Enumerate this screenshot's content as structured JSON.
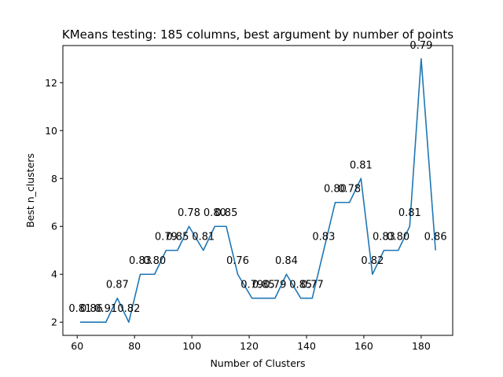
{
  "chart_data": {
    "type": "line",
    "title": "KMeans testing: 185 columns, best argument by number of points",
    "xlabel": "Number of Clusters",
    "ylabel": "Best n_clusters",
    "xlim": [
      55,
      191
    ],
    "ylim": [
      1.45,
      13.55
    ],
    "xticks": [
      60,
      80,
      100,
      120,
      140,
      160,
      180
    ],
    "yticks": [
      2,
      4,
      6,
      8,
      10,
      12
    ],
    "grid": false,
    "line_color": "#1f77b4",
    "series": [
      {
        "points": [
          {
            "x": 61,
            "y": 2,
            "label": "0.81"
          },
          {
            "x": 65,
            "y": 2,
            "label": "0.86"
          },
          {
            "x": 70,
            "y": 2,
            "label": "0.91"
          },
          {
            "x": 74,
            "y": 3,
            "label": "0.87"
          },
          {
            "x": 78,
            "y": 2,
            "label": "0.82"
          },
          {
            "x": 82,
            "y": 4,
            "label": "0.83"
          },
          {
            "x": 87,
            "y": 4,
            "label": "0.80"
          },
          {
            "x": 91,
            "y": 5,
            "label": "0.79"
          },
          {
            "x": 95,
            "y": 5,
            "label": "0.85"
          },
          {
            "x": 99,
            "y": 6,
            "label": "0.78"
          },
          {
            "x": 104,
            "y": 5,
            "label": "0.81"
          },
          {
            "x": 108,
            "y": 6,
            "label": "0.80"
          },
          {
            "x": 112,
            "y": 6,
            "label": "0.85"
          },
          {
            "x": 116,
            "y": 4,
            "label": "0.76"
          },
          {
            "x": 121,
            "y": 3,
            "label": "0.79"
          },
          {
            "x": 125,
            "y": 3,
            "label": "0.85"
          },
          {
            "x": 129,
            "y": 3,
            "label": "0.79"
          },
          {
            "x": 133,
            "y": 4,
            "label": "0.84"
          },
          {
            "x": 138,
            "y": 3,
            "label": "0.85"
          },
          {
            "x": 142,
            "y": 3,
            "label": "0.77"
          },
          {
            "x": 146,
            "y": 5,
            "label": "0.83"
          },
          {
            "x": 150,
            "y": 7,
            "label": "0.80"
          },
          {
            "x": 155,
            "y": 7,
            "label": "0.78"
          },
          {
            "x": 159,
            "y": 8,
            "label": "0.81"
          },
          {
            "x": 163,
            "y": 4,
            "label": "0.82"
          },
          {
            "x": 167,
            "y": 5,
            "label": "0.83"
          },
          {
            "x": 172,
            "y": 5,
            "label": "0.80"
          },
          {
            "x": 176,
            "y": 6,
            "label": "0.81"
          },
          {
            "x": 180,
            "y": 13,
            "label": "0.79"
          },
          {
            "x": 185,
            "y": 5,
            "label": "0.86"
          }
        ]
      }
    ]
  }
}
